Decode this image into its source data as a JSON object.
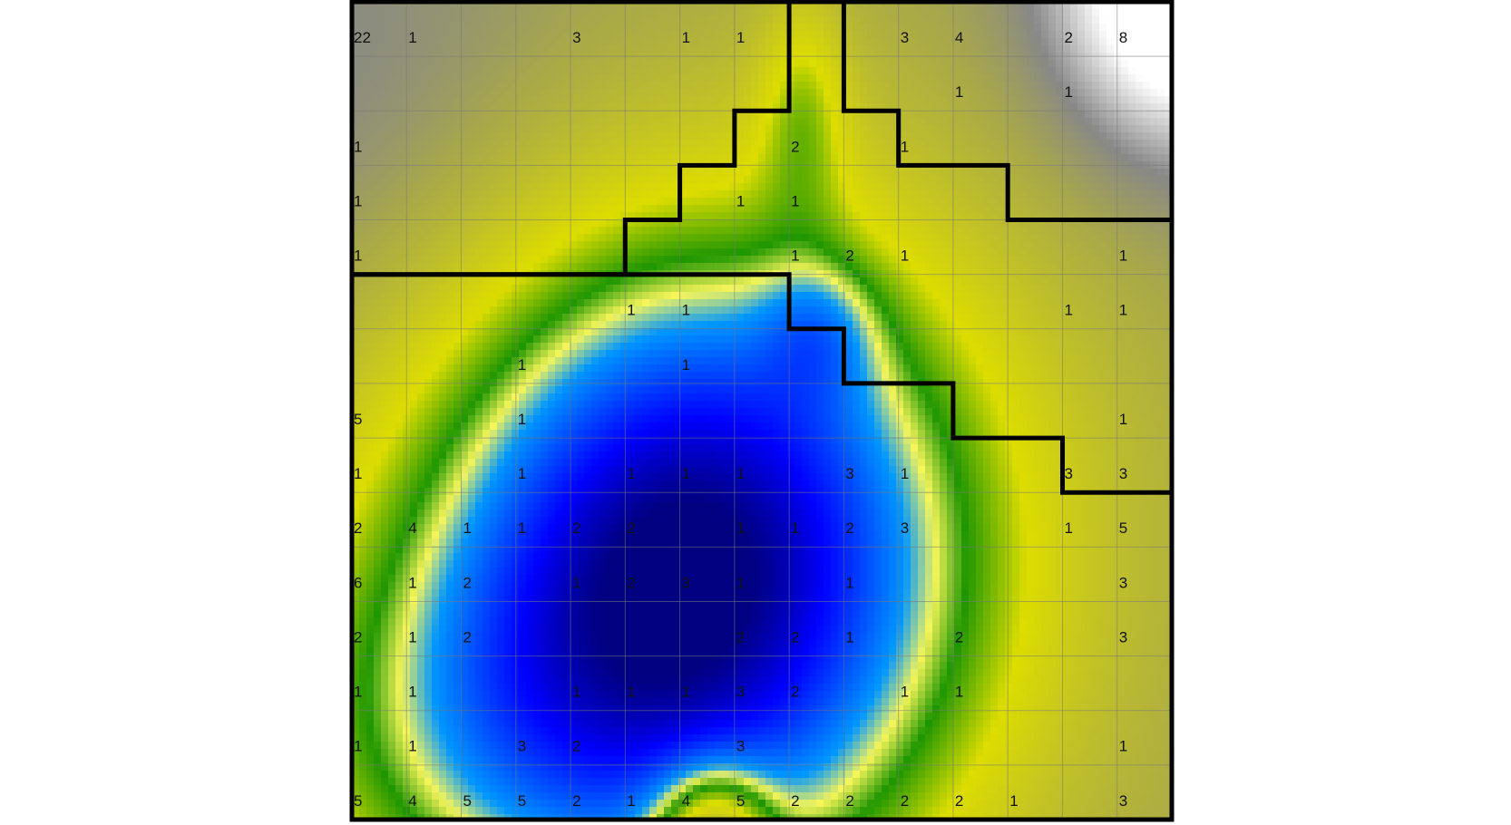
{
  "chart_data": {
    "type": "heatmap",
    "title": "",
    "xlabel": "",
    "ylabel": "",
    "rows": 15,
    "cols": 15,
    "grid": true,
    "colormap": [
      "#000080",
      "#0000ff",
      "#0096ff",
      "#f5f55a",
      "#1e9600",
      "#dddd00",
      "#888888",
      "#ffffff"
    ],
    "counts": [
      [
        "22",
        "1",
        "",
        "",
        "3",
        "",
        "1",
        "1",
        "",
        "",
        "3",
        "4",
        "",
        "2",
        "8"
      ],
      [
        "",
        "",
        "",
        "",
        "",
        "",
        "",
        "",
        "",
        "",
        "",
        "1",
        "",
        "1",
        ""
      ],
      [
        "1",
        "",
        "",
        "",
        "",
        "",
        "",
        "",
        "2",
        "",
        "1",
        "",
        "",
        "",
        ""
      ],
      [
        "1",
        "",
        "",
        "",
        "",
        "",
        "",
        "1",
        "1",
        "",
        "",
        "",
        "",
        "",
        ""
      ],
      [
        "1",
        "",
        "",
        "",
        "",
        "",
        "",
        "",
        "1",
        "2",
        "1",
        "",
        "",
        "",
        "1"
      ],
      [
        "",
        "",
        "",
        "",
        "",
        "1",
        "1",
        "",
        "",
        "",
        "",
        "",
        "",
        "1",
        "1"
      ],
      [
        "",
        "",
        "",
        "1",
        "",
        "",
        "1",
        "",
        "",
        "",
        "",
        "",
        "",
        "",
        ""
      ],
      [
        "5",
        "",
        "",
        "1",
        "",
        "",
        "",
        "",
        "",
        "",
        "",
        "",
        "",
        "",
        "1"
      ],
      [
        "1",
        "",
        "",
        "1",
        "",
        "1",
        "1",
        "1",
        "",
        "3",
        "1",
        "",
        "",
        "3",
        "3"
      ],
      [
        "2",
        "4",
        "1",
        "1",
        "2",
        "2",
        "",
        "1",
        "1",
        "2",
        "3",
        "",
        "",
        "1",
        "5"
      ],
      [
        "6",
        "1",
        "2",
        "",
        "1",
        "2",
        "3",
        "1",
        "",
        "1",
        "",
        "",
        "",
        "",
        "3"
      ],
      [
        "2",
        "1",
        "2",
        "",
        "",
        "",
        "",
        "2",
        "2",
        "1",
        "",
        "2",
        "",
        "",
        "3"
      ],
      [
        "1",
        "1",
        "",
        "",
        "1",
        "1",
        "1",
        "3",
        "2",
        "",
        "1",
        "1",
        "",
        "",
        ""
      ],
      [
        "1",
        "1",
        "",
        "3",
        "2",
        "",
        "",
        "3",
        "",
        "",
        "",
        "",
        "",
        "",
        "1"
      ],
      [
        "5",
        "4",
        "5",
        "5",
        "2",
        "1",
        "4",
        "5",
        "2",
        "2",
        "2",
        "2",
        "1",
        "",
        "3"
      ]
    ],
    "regions": [
      {
        "cells": "upper-left block",
        "boundary": true
      },
      {
        "cells": "upper-right block",
        "boundary": true
      },
      {
        "cells": "lower region",
        "boundary": false
      }
    ]
  }
}
